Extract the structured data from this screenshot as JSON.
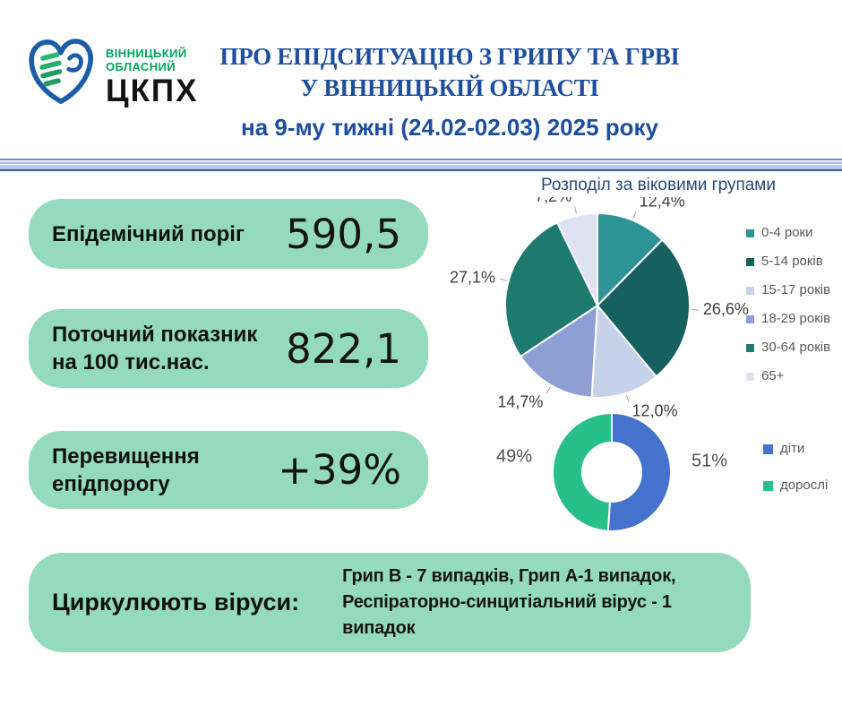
{
  "header": {
    "logo": {
      "line1": "ВІННИЦЬКИЙ",
      "line2": "ОБЛАСНИЙ",
      "acronym": "ЦКПХ"
    },
    "title_line1": "ПРО ЕПІДСИТУАЦІЮ З ГРИПУ ТА ГРВІ",
    "title_line2": "У ВІННИЦЬКІЙ ОБЛАСТІ",
    "subtitle": "на 9-му тижні (24.02-02.03) 2025 року"
  },
  "stats": [
    {
      "label": "Епідемічний поріг",
      "value": "590,5"
    },
    {
      "label": "Поточний показник на 100 тис.нас.",
      "value": "822,1"
    },
    {
      "label": "Перевищення епідпорогу",
      "value": "+39%"
    }
  ],
  "viruses": {
    "label": "Циркулюють віруси:",
    "text": "Грип В - 7 випадків, Грип А-1 випадок, Респіраторно-синцитіальний вірус - 1 випадок"
  },
  "colors": {
    "card_green": "#93DBBC",
    "title_blue": "#1E4E9E",
    "chart_title_blue": "#2B4878",
    "logo_blue": "#1C5CA8",
    "logo_green": "#27AE6B",
    "legend_text_gray": "#595959",
    "label_gray": "#3F3F3F"
  },
  "chart_data": [
    {
      "type": "pie",
      "title": "Розподіл за віковими групами",
      "legend_position": "right",
      "slices": [
        {
          "name": "0-4 роки",
          "value": 12.4,
          "label": "12,4%",
          "color": "#2D9496"
        },
        {
          "name": "5-14 років",
          "value": 26.6,
          "label": "26,6%",
          "color": "#166160"
        },
        {
          "name": "15-17 років",
          "value": 12.0,
          "label": "12,0%",
          "color": "#C6D1EB"
        },
        {
          "name": "18-29 років",
          "value": 14.7,
          "label": "14,7%",
          "color": "#8E9FD6"
        },
        {
          "name": "30-64 років",
          "value": 27.1,
          "label": "27,1%",
          "color": "#1E7A6E"
        },
        {
          "name": "65+",
          "value": 7.2,
          "label": "7,2%",
          "color": "#DEE3F4"
        }
      ]
    },
    {
      "type": "donut",
      "legend_position": "right",
      "slices": [
        {
          "name": "діти",
          "value": 51,
          "label": "51%",
          "color": "#4472CC"
        },
        {
          "name": "дорослі",
          "value": 49,
          "label": "49%",
          "color": "#27C08B"
        }
      ]
    }
  ]
}
